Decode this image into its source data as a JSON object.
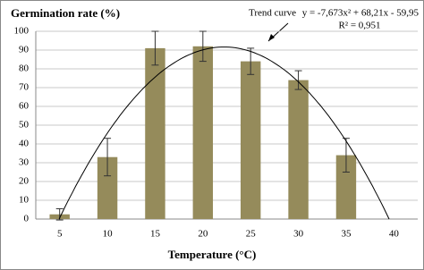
{
  "chart_data": {
    "type": "bar",
    "title": "Germination rate (%)",
    "x_label": "Temperature (°C)",
    "categories": [
      "5",
      "10",
      "15",
      "20",
      "25",
      "30",
      "35",
      "40"
    ],
    "values": [
      2.5,
      33,
      91,
      92,
      84,
      74,
      34,
      null
    ],
    "errors": [
      3,
      10,
      9,
      8,
      7,
      5,
      9,
      null
    ],
    "color": "#958b5b",
    "ylim": [
      0,
      100
    ],
    "yticks": [
      0,
      10,
      20,
      30,
      40,
      50,
      60,
      70,
      80,
      90,
      100
    ],
    "grid": true,
    "trend": {
      "label": "Trend curve",
      "equation": "y = -7,673x² + 68,21x - 59,95",
      "r2": "R² = 0,951",
      "coefficients": [
        -7.673,
        68.21,
        -59.95
      ]
    }
  }
}
